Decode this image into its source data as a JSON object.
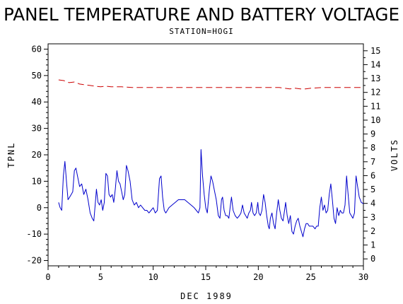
{
  "chart_data": {
    "type": "line",
    "title": "PANEL TEMPERATURE AND BATTERY VOLTAGE",
    "subtitle": "STATION=HOGI",
    "xlabel": "DEC 1989",
    "ylabel_left": "TPNL",
    "ylabel_right": "VOLTS",
    "xlim": [
      0,
      30
    ],
    "ylim_left": [
      -22,
      62
    ],
    "ylim_right": [
      -0.5,
      15.5
    ],
    "x_ticks": [
      0,
      5,
      10,
      15,
      20,
      25,
      30
    ],
    "y_left_ticks": [
      -20,
      -10,
      0,
      10,
      20,
      30,
      40,
      50,
      60
    ],
    "y_right_ticks": [
      0,
      1,
      2,
      3,
      4,
      5,
      6,
      7,
      8,
      9,
      10,
      11,
      12,
      13,
      14,
      15
    ],
    "grid": false,
    "series": [
      {
        "axis": "left",
        "color": "#0000cc",
        "style": "solid",
        "points": [
          [
            1.0,
            2
          ],
          [
            1.15,
            0
          ],
          [
            1.3,
            -1
          ],
          [
            1.45,
            12
          ],
          [
            1.6,
            17.5
          ],
          [
            1.75,
            10
          ],
          [
            1.9,
            3
          ],
          [
            2.05,
            4
          ],
          [
            2.2,
            5
          ],
          [
            2.35,
            6
          ],
          [
            2.5,
            14
          ],
          [
            2.65,
            15
          ],
          [
            2.8,
            12
          ],
          [
            3.0,
            8
          ],
          [
            3.2,
            9
          ],
          [
            3.4,
            5
          ],
          [
            3.6,
            7
          ],
          [
            3.8,
            3
          ],
          [
            4.0,
            -2
          ],
          [
            4.2,
            -4
          ],
          [
            4.35,
            -5
          ],
          [
            4.5,
            2
          ],
          [
            4.6,
            7
          ],
          [
            4.75,
            2
          ],
          [
            4.9,
            1
          ],
          [
            5.05,
            3
          ],
          [
            5.2,
            -1
          ],
          [
            5.35,
            2
          ],
          [
            5.5,
            13
          ],
          [
            5.65,
            12
          ],
          [
            5.8,
            5
          ],
          [
            5.95,
            4
          ],
          [
            6.1,
            5
          ],
          [
            6.25,
            2
          ],
          [
            6.4,
            7
          ],
          [
            6.55,
            14
          ],
          [
            6.7,
            10
          ],
          [
            6.85,
            9
          ],
          [
            7.0,
            6
          ],
          [
            7.15,
            3
          ],
          [
            7.3,
            5
          ],
          [
            7.45,
            16
          ],
          [
            7.6,
            14
          ],
          [
            7.8,
            10
          ],
          [
            8.0,
            3
          ],
          [
            8.2,
            1
          ],
          [
            8.4,
            2
          ],
          [
            8.6,
            0
          ],
          [
            8.8,
            1
          ],
          [
            9.0,
            0
          ],
          [
            9.2,
            -1
          ],
          [
            9.4,
            -1
          ],
          [
            9.6,
            -2
          ],
          [
            9.8,
            -1
          ],
          [
            10.0,
            0
          ],
          [
            10.2,
            -2
          ],
          [
            10.4,
            -1
          ],
          [
            10.6,
            11
          ],
          [
            10.75,
            12
          ],
          [
            10.9,
            4
          ],
          [
            11.05,
            -1
          ],
          [
            11.2,
            -2
          ],
          [
            11.5,
            0
          ],
          [
            11.8,
            1
          ],
          [
            12.1,
            2
          ],
          [
            12.4,
            3
          ],
          [
            12.7,
            3
          ],
          [
            13.0,
            3
          ],
          [
            13.3,
            2
          ],
          [
            13.6,
            1
          ],
          [
            13.9,
            0
          ],
          [
            14.1,
            -1
          ],
          [
            14.3,
            -2
          ],
          [
            14.45,
            0
          ],
          [
            14.55,
            22
          ],
          [
            14.7,
            12
          ],
          [
            14.85,
            5
          ],
          [
            15.0,
            0
          ],
          [
            15.15,
            -2
          ],
          [
            15.35,
            7
          ],
          [
            15.5,
            12
          ],
          [
            15.65,
            10
          ],
          [
            15.8,
            7
          ],
          [
            16.0,
            3
          ],
          [
            16.2,
            -3
          ],
          [
            16.35,
            -4
          ],
          [
            16.5,
            3
          ],
          [
            16.6,
            4
          ],
          [
            16.75,
            -1
          ],
          [
            16.9,
            -3
          ],
          [
            17.05,
            -3
          ],
          [
            17.2,
            -4
          ],
          [
            17.35,
            1
          ],
          [
            17.45,
            4
          ],
          [
            17.6,
            -1
          ],
          [
            17.8,
            -3
          ],
          [
            18.0,
            -4
          ],
          [
            18.2,
            -3
          ],
          [
            18.35,
            -2
          ],
          [
            18.5,
            1
          ],
          [
            18.65,
            -2
          ],
          [
            18.8,
            -3
          ],
          [
            18.95,
            -4
          ],
          [
            19.1,
            -2
          ],
          [
            19.25,
            -1
          ],
          [
            19.35,
            2
          ],
          [
            19.5,
            -2
          ],
          [
            19.65,
            -3
          ],
          [
            19.8,
            -2
          ],
          [
            19.95,
            2
          ],
          [
            20.05,
            -2
          ],
          [
            20.2,
            -3
          ],
          [
            20.35,
            -1
          ],
          [
            20.5,
            5
          ],
          [
            20.65,
            2
          ],
          [
            20.8,
            -3
          ],
          [
            20.95,
            -7
          ],
          [
            21.05,
            -8
          ],
          [
            21.15,
            -4
          ],
          [
            21.3,
            -2
          ],
          [
            21.45,
            -6
          ],
          [
            21.6,
            -8
          ],
          [
            21.75,
            -2
          ],
          [
            21.9,
            3
          ],
          [
            22.05,
            -1
          ],
          [
            22.2,
            -4
          ],
          [
            22.35,
            -5
          ],
          [
            22.5,
            -1
          ],
          [
            22.6,
            2
          ],
          [
            22.75,
            -3
          ],
          [
            22.9,
            -6
          ],
          [
            23.05,
            -3
          ],
          [
            23.2,
            -9
          ],
          [
            23.35,
            -10
          ],
          [
            23.5,
            -7
          ],
          [
            23.65,
            -5
          ],
          [
            23.8,
            -4
          ],
          [
            23.95,
            -7
          ],
          [
            24.1,
            -9
          ],
          [
            24.25,
            -11
          ],
          [
            24.4,
            -8
          ],
          [
            24.55,
            -6
          ],
          [
            24.7,
            -6
          ],
          [
            24.85,
            -7
          ],
          [
            25.0,
            -7
          ],
          [
            25.2,
            -7
          ],
          [
            25.4,
            -8
          ],
          [
            25.55,
            -7
          ],
          [
            25.7,
            -7
          ],
          [
            25.85,
            0
          ],
          [
            26.0,
            4
          ],
          [
            26.15,
            -1
          ],
          [
            26.3,
            1
          ],
          [
            26.45,
            -2
          ],
          [
            26.6,
            -1
          ],
          [
            26.75,
            5
          ],
          [
            26.9,
            9
          ],
          [
            27.05,
            3
          ],
          [
            27.2,
            -4
          ],
          [
            27.35,
            -6
          ],
          [
            27.5,
            0
          ],
          [
            27.65,
            -3
          ],
          [
            27.8,
            -1
          ],
          [
            27.95,
            -2
          ],
          [
            28.1,
            -2
          ],
          [
            28.25,
            1
          ],
          [
            28.4,
            12
          ],
          [
            28.55,
            5
          ],
          [
            28.7,
            -2
          ],
          [
            28.85,
            -3
          ],
          [
            29.0,
            -4
          ],
          [
            29.15,
            -2
          ],
          [
            29.3,
            12
          ],
          [
            29.45,
            8
          ],
          [
            29.6,
            4
          ],
          [
            29.8,
            2
          ],
          [
            30.0,
            1.5
          ]
        ]
      },
      {
        "axis": "right",
        "color": "#cc0000",
        "style": "dashed",
        "points": [
          [
            1.0,
            12.9
          ],
          [
            1.5,
            12.85
          ],
          [
            2.0,
            12.7
          ],
          [
            2.5,
            12.75
          ],
          [
            3.0,
            12.6
          ],
          [
            3.5,
            12.55
          ],
          [
            4.0,
            12.5
          ],
          [
            4.5,
            12.45
          ],
          [
            5.0,
            12.4
          ],
          [
            5.5,
            12.45
          ],
          [
            6.0,
            12.4
          ],
          [
            6.5,
            12.4
          ],
          [
            7.0,
            12.4
          ],
          [
            8.0,
            12.35
          ],
          [
            9.0,
            12.35
          ],
          [
            10.0,
            12.35
          ],
          [
            11.0,
            12.35
          ],
          [
            12.0,
            12.35
          ],
          [
            13.0,
            12.35
          ],
          [
            14.0,
            12.35
          ],
          [
            15.0,
            12.35
          ],
          [
            16.0,
            12.35
          ],
          [
            17.0,
            12.35
          ],
          [
            18.0,
            12.35
          ],
          [
            19.0,
            12.35
          ],
          [
            20.0,
            12.35
          ],
          [
            21.0,
            12.35
          ],
          [
            22.0,
            12.35
          ],
          [
            22.5,
            12.3
          ],
          [
            23.0,
            12.25
          ],
          [
            23.5,
            12.3
          ],
          [
            24.0,
            12.25
          ],
          [
            24.5,
            12.25
          ],
          [
            25.0,
            12.3
          ],
          [
            26.0,
            12.35
          ],
          [
            27.0,
            12.35
          ],
          [
            28.0,
            12.35
          ],
          [
            29.0,
            12.35
          ],
          [
            30.0,
            12.35
          ]
        ]
      }
    ]
  }
}
